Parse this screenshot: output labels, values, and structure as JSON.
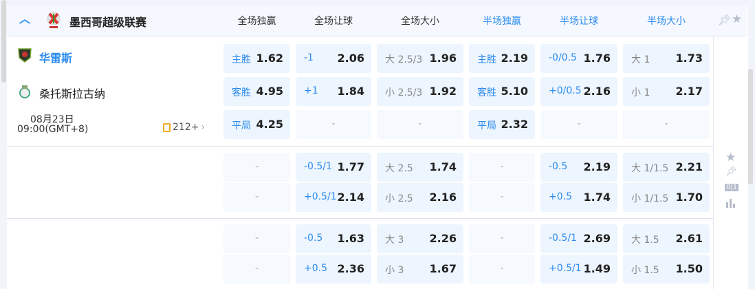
{
  "league": {
    "name": "墨西哥超级联赛"
  },
  "headers": [
    "全场独赢",
    "全场让球",
    "全场大小",
    "半场独赢",
    "半场让球",
    "半场大小"
  ],
  "match": {
    "home": "华雷斯",
    "away": "桑托斯拉古纳",
    "date": "08月23日",
    "time": "09:00(GMT+8)",
    "more_count": "212+"
  },
  "colors": {
    "accent": "#2c8cf0",
    "cell_bg": "#edf5fe",
    "more_icon": "#f5a623"
  },
  "groups": [
    {
      "rows": [
        [
          {
            "l": "主胜",
            "v": "1.62"
          },
          {
            "l": "-1",
            "v": "2.06"
          },
          {
            "l": "大 2.5/3",
            "v": "1.96",
            "g": 1
          },
          {
            "l": "主胜",
            "v": "2.19"
          },
          {
            "l": "-0/0.5",
            "v": "1.76"
          },
          {
            "l": "大 1",
            "v": "1.73",
            "g": 1
          }
        ],
        [
          {
            "l": "客胜",
            "v": "4.95"
          },
          {
            "l": "+1",
            "v": "1.84"
          },
          {
            "l": "小 2.5/3",
            "v": "1.92",
            "g": 1
          },
          {
            "l": "客胜",
            "v": "5.10"
          },
          {
            "l": "+0/0.5",
            "v": "2.16"
          },
          {
            "l": "小 1",
            "v": "2.17",
            "g": 1
          }
        ],
        [
          {
            "l": "平局",
            "v": "4.25"
          },
          {
            "e": "-"
          },
          {
            "e": "-"
          },
          {
            "l": "平局",
            "v": "2.32"
          },
          {
            "e": "-"
          },
          {
            "e": "-"
          }
        ]
      ]
    },
    {
      "rows": [
        [
          {
            "e": "-"
          },
          {
            "l": "-0.5/1",
            "v": "1.77"
          },
          {
            "l": "大 2.5",
            "v": "1.74",
            "g": 1
          },
          {
            "e": "-"
          },
          {
            "l": "-0.5",
            "v": "2.19"
          },
          {
            "l": "大 1/1.5",
            "v": "2.21",
            "g": 1
          }
        ],
        [
          {
            "e": "-"
          },
          {
            "l": "+0.5/1",
            "v": "2.14"
          },
          {
            "l": "小 2.5",
            "v": "2.16",
            "g": 1
          },
          {
            "e": "-"
          },
          {
            "l": "+0.5",
            "v": "1.74"
          },
          {
            "l": "小 1/1.5",
            "v": "1.70",
            "g": 1
          }
        ]
      ]
    },
    {
      "rows": [
        [
          {
            "e": "-"
          },
          {
            "l": "-0.5",
            "v": "1.63"
          },
          {
            "l": "大 3",
            "v": "2.26",
            "g": 1
          },
          {
            "e": "-"
          },
          {
            "l": "-0.5/1",
            "v": "2.69"
          },
          {
            "l": "大 1.5",
            "v": "2.61",
            "g": 1
          }
        ],
        [
          {
            "e": "-"
          },
          {
            "l": "+0.5",
            "v": "2.36"
          },
          {
            "l": "小 3",
            "v": "1.67",
            "g": 1
          },
          {
            "e": "-"
          },
          {
            "l": "+0.5/1",
            "v": "1.49"
          },
          {
            "l": "小 1.5",
            "v": "1.50",
            "g": 1
          }
        ]
      ]
    }
  ],
  "side_icons": [
    "star-icon",
    "pin-icon",
    "score-icon",
    "stats-icon"
  ],
  "side_score_text": "0|1"
}
